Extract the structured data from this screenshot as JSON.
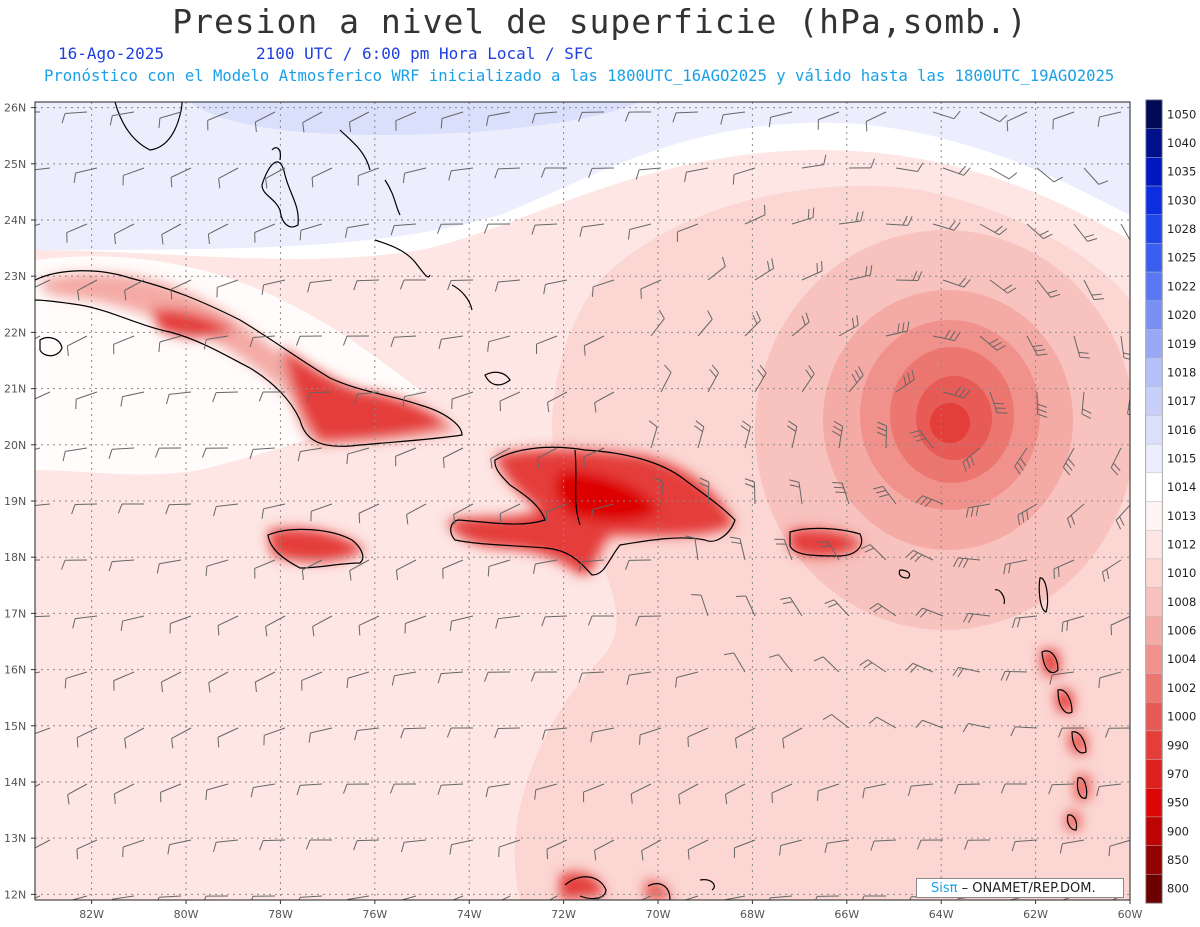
{
  "header": {
    "title": "Presion a nivel de superficie (hPa,somb.)",
    "date": "16-Ago-2025",
    "time": "2100 UTC / 6:00 pm Hora Local / SFC",
    "info": "Pronóstico con el Modelo Atmosferico WRF inicializado a las 1800UTC_16AGO2025 y válido hasta las  1800UTC_19AGO2025"
  },
  "map": {
    "lat_ticks": [
      "26N",
      "25N",
      "24N",
      "23N",
      "22N",
      "21N",
      "20N",
      "19N",
      "18N",
      "17N",
      "16N",
      "15N",
      "14N",
      "13N",
      "12N"
    ],
    "lon_ticks": [
      "82W",
      "80W",
      "78W",
      "76W",
      "74W",
      "72W",
      "70W",
      "68W",
      "66W",
      "64W",
      "62W",
      "60W"
    ],
    "low_center": {
      "lon": -63.9,
      "lat": 20.3
    }
  },
  "colorbar": {
    "levels": [
      "1050",
      "1040",
      "1035",
      "1030",
      "1028",
      "1025",
      "1022",
      "1020",
      "1019",
      "1018",
      "1017",
      "1016",
      "1015",
      "1014",
      "1013",
      "1012",
      "1010",
      "1008",
      "1006",
      "1004",
      "1002",
      "1000",
      "990",
      "970",
      "950",
      "900",
      "850",
      "800"
    ],
    "colors": [
      "#000a55",
      "#00108a",
      "#0018c0",
      "#0a2ee0",
      "#1f46e8",
      "#3a5ef0",
      "#5a78f2",
      "#7890f4",
      "#98a8f6",
      "#b4c0f8",
      "#c8d0fa",
      "#dadffb",
      "#eceefd",
      "#ffffff",
      "#fff4f3",
      "#fde6e4",
      "#fbd6d3",
      "#f8c2be",
      "#f4aaa5",
      "#f0918b",
      "#ec7670",
      "#e85a55",
      "#e43e3a",
      "#e0201f",
      "#dc0606",
      "#bc0404",
      "#920202",
      "#6a0000"
    ]
  },
  "credit": {
    "brand": "Sisπ",
    "text": "– ONAMET/REP.DOM."
  }
}
